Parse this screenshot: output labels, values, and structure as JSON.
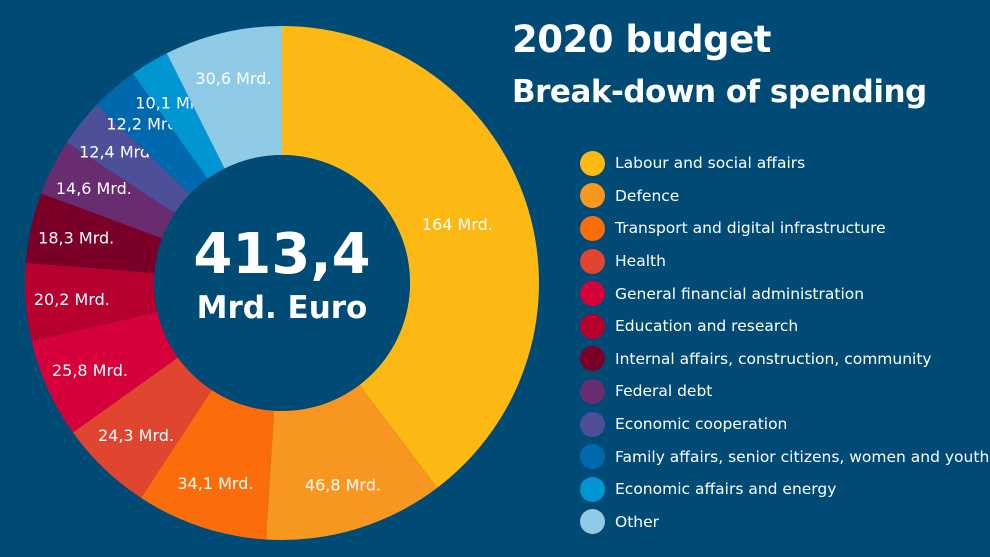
{
  "chart_data": {
    "type": "pie",
    "title": "2020 budget",
    "subtitle": "Break-down of spending",
    "center": {
      "value": "413,4",
      "unit": "Mrd. Euro"
    },
    "legend_position": "right",
    "categories": [
      "Labour and social affairs",
      "Defence",
      "Transport and digital infrastructure",
      "Health",
      "General financial administration",
      "Education and research",
      "Internal affairs, construction, community",
      "Federal debt",
      "Economic cooperation",
      "Family affairs, senior citizens, women and youth",
      "Economic affairs and energy",
      "Other"
    ],
    "values": [
      164,
      46.8,
      34.1,
      24.3,
      25.8,
      20.2,
      18.3,
      14.6,
      12.4,
      12.2,
      10.1,
      30.6
    ],
    "data_labels": [
      "164 Mrd.",
      "46,8 Mrd.",
      "34,1 Mrd.",
      "24,3 Mrd.",
      "25,8 Mrd.",
      "20,2 Mrd.",
      "18,3 Mrd.",
      "14,6 Mrd.",
      "12,4 Mrd.",
      "12,2 Mrd.",
      "10,1 Mrd.",
      "30,6 Mrd."
    ],
    "colors": [
      "#fdb913",
      "#f8971f",
      "#fb6d0a",
      "#e0452f",
      "#d6003a",
      "#b8002f",
      "#7a0027",
      "#6a2c70",
      "#4e4f99",
      "#0069ad",
      "#0096d3",
      "#8fcae6"
    ]
  }
}
